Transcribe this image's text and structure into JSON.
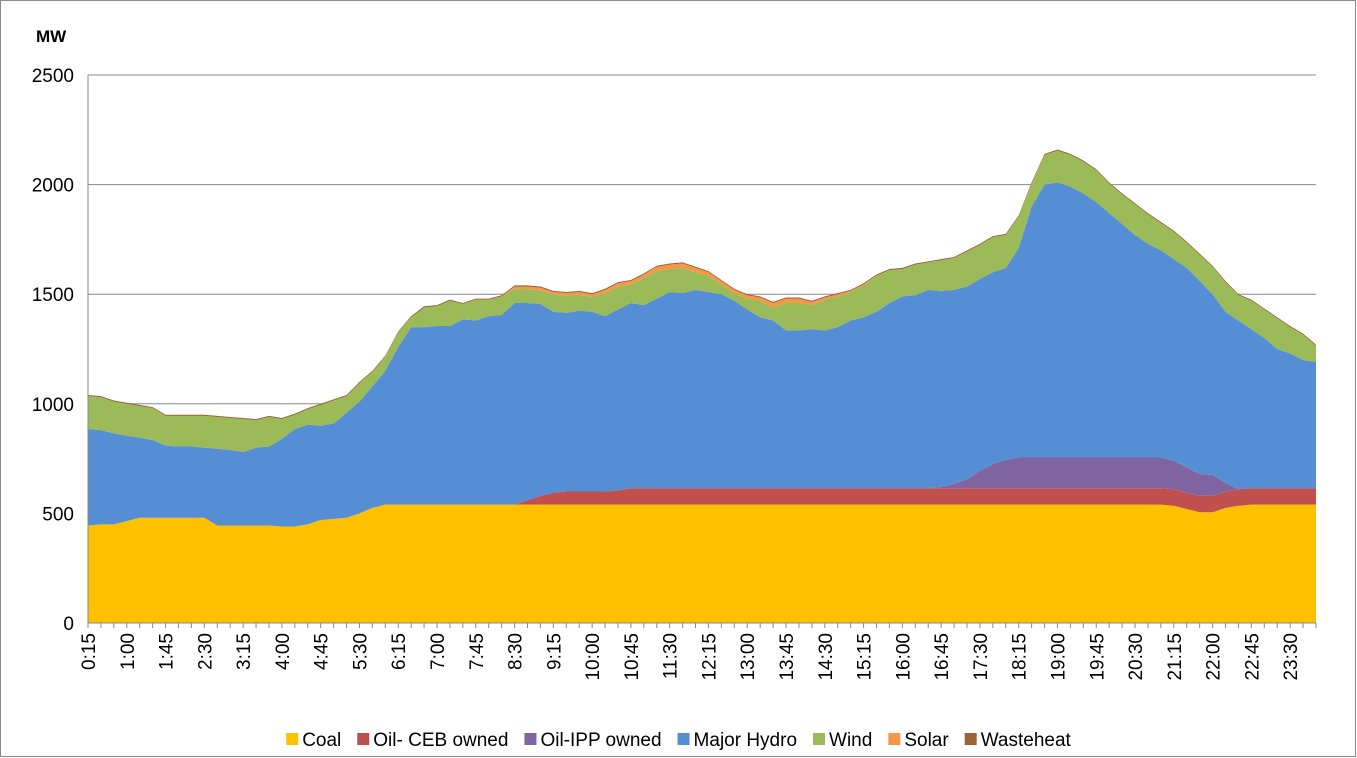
{
  "chart_data": {
    "type": "stacked_area",
    "y_label": "MW",
    "legend": "bottom",
    "grid": true,
    "ylim": [
      0,
      2500
    ],
    "yticks": [
      0,
      500,
      1000,
      1500,
      2000,
      2500
    ],
    "categories": [
      "0:15",
      null,
      null,
      "1:00",
      null,
      null,
      "1:45",
      null,
      null,
      "2:30",
      null,
      null,
      "3:15",
      null,
      null,
      "4:00",
      null,
      null,
      "4:45",
      null,
      null,
      "5:30",
      null,
      null,
      "6:15",
      null,
      null,
      "7:00",
      null,
      null,
      "7:45",
      null,
      null,
      "8:30",
      null,
      null,
      "9:15",
      null,
      null,
      "10:00",
      null,
      null,
      "10:45",
      null,
      null,
      "11:30",
      null,
      null,
      "12:15",
      null,
      null,
      "13:00",
      null,
      null,
      "13:45",
      null,
      null,
      "14:30",
      null,
      null,
      "15:15",
      null,
      null,
      "16:00",
      null,
      null,
      "16:45",
      null,
      null,
      "17:30",
      null,
      null,
      "18:15",
      null,
      null,
      "19:00",
      null,
      null,
      "19:45",
      null,
      null,
      "20:30",
      null,
      null,
      "21:15",
      null,
      null,
      "22:00",
      null,
      null,
      "22:45",
      null,
      null,
      "23:30",
      null,
      null
    ],
    "series": [
      {
        "name": "Coal",
        "color": "#FFC000",
        "values": [
          445,
          450,
          450,
          465,
          480,
          480,
          480,
          480,
          480,
          480,
          445,
          445,
          445,
          445,
          445,
          440,
          440,
          450,
          470,
          475,
          480,
          500,
          525,
          540,
          540,
          540,
          540,
          540,
          540,
          540,
          540,
          540,
          540,
          540,
          540,
          540,
          540,
          540,
          540,
          540,
          540,
          540,
          540,
          540,
          540,
          540,
          540,
          540,
          540,
          540,
          540,
          540,
          540,
          540,
          540,
          540,
          540,
          540,
          540,
          540,
          540,
          540,
          540,
          540,
          540,
          540,
          540,
          540,
          540,
          540,
          540,
          540,
          540,
          540,
          540,
          540,
          540,
          540,
          540,
          540,
          540,
          540,
          540,
          540,
          535,
          520,
          505,
          505,
          525,
          535,
          540,
          540,
          540,
          540,
          540,
          540
        ]
      },
      {
        "name": "Oil- CEB owned",
        "color": "#C0504D",
        "values": [
          0,
          0,
          0,
          0,
          0,
          0,
          0,
          0,
          0,
          0,
          0,
          0,
          0,
          0,
          0,
          0,
          0,
          0,
          0,
          0,
          0,
          0,
          0,
          0,
          0,
          0,
          0,
          0,
          0,
          0,
          0,
          0,
          0,
          0,
          20,
          40,
          55,
          60,
          60,
          60,
          60,
          65,
          75,
          75,
          75,
          75,
          75,
          75,
          75,
          75,
          75,
          75,
          75,
          75,
          75,
          75,
          75,
          75,
          75,
          75,
          75,
          75,
          75,
          75,
          75,
          75,
          75,
          75,
          75,
          75,
          75,
          75,
          75,
          75,
          75,
          75,
          75,
          75,
          75,
          75,
          75,
          75,
          75,
          75,
          75,
          75,
          75,
          75,
          75,
          75,
          75,
          75,
          75,
          75,
          75,
          75
        ]
      },
      {
        "name": "Oil-IPP owned",
        "color": "#8064A2",
        "values": [
          0,
          0,
          0,
          0,
          0,
          0,
          0,
          0,
          0,
          0,
          0,
          0,
          0,
          0,
          0,
          0,
          0,
          0,
          0,
          0,
          0,
          0,
          0,
          0,
          0,
          0,
          0,
          0,
          0,
          0,
          0,
          0,
          0,
          0,
          0,
          0,
          0,
          0,
          0,
          0,
          0,
          0,
          0,
          0,
          0,
          0,
          0,
          0,
          0,
          0,
          0,
          0,
          0,
          0,
          0,
          0,
          0,
          0,
          0,
          0,
          0,
          0,
          0,
          0,
          0,
          0,
          5,
          20,
          40,
          80,
          110,
          130,
          140,
          140,
          140,
          140,
          140,
          140,
          140,
          140,
          140,
          140,
          140,
          140,
          130,
          115,
          100,
          95,
          40,
          0,
          0,
          0,
          0,
          0,
          0,
          0
        ]
      },
      {
        "name": "Major Hydro",
        "color": "#558ED5",
        "values": [
          440,
          430,
          415,
          390,
          365,
          355,
          330,
          325,
          325,
          320,
          350,
          345,
          335,
          355,
          360,
          400,
          445,
          455,
          430,
          435,
          480,
          510,
          555,
          610,
          720,
          810,
          810,
          815,
          815,
          845,
          840,
          860,
          865,
          920,
          900,
          875,
          825,
          815,
          825,
          820,
          800,
          825,
          845,
          835,
          865,
          895,
          890,
          905,
          895,
          885,
          855,
          815,
          780,
          765,
          720,
          720,
          725,
          720,
          735,
          765,
          780,
          805,
          845,
          875,
          880,
          905,
          895,
          885,
          880,
          875,
          875,
          875,
          955,
          1145,
          1245,
          1255,
          1235,
          1205,
          1165,
          1115,
          1065,
          1015,
          975,
          945,
          920,
          910,
          880,
          825,
          780,
          770,
          725,
          685,
          635,
          615,
          585,
          575
        ]
      },
      {
        "name": "Wind",
        "color": "#9BBB59",
        "values": [
          150,
          150,
          145,
          145,
          145,
          145,
          135,
          140,
          140,
          145,
          145,
          145,
          150,
          125,
          135,
          90,
          65,
          70,
          95,
          105,
          75,
          85,
          65,
          65,
          65,
          45,
          90,
          90,
          115,
          70,
          95,
          75,
          85,
          65,
          63,
          63,
          78,
          78,
          73,
          68,
          105,
          105,
          85,
          125,
          125,
          105,
          115,
          80,
          75,
          45,
          35,
          50,
          75,
          60,
          125,
          125,
          110,
          140,
          140,
          130,
          145,
          165,
          150,
          125,
          140,
          125,
          140,
          145,
          160,
          155,
          160,
          150,
          145,
          105,
          135,
          145,
          145,
          145,
          145,
          135,
          135,
          140,
          135,
          125,
          125,
          115,
          120,
          125,
          135,
          115,
          130,
          130,
          140,
          120,
          115,
          75
        ]
      },
      {
        "name": "Solar",
        "color": "#F79646",
        "values": [
          0,
          0,
          0,
          0,
          0,
          0,
          0,
          0,
          0,
          0,
          0,
          0,
          0,
          0,
          0,
          0,
          0,
          0,
          0,
          0,
          0,
          0,
          0,
          0,
          0,
          0,
          0,
          0,
          0,
          0,
          0,
          0,
          0,
          10,
          12,
          12,
          12,
          12,
          12,
          12,
          15,
          15,
          15,
          15,
          20,
          20,
          20,
          20,
          15,
          15,
          15,
          15,
          15,
          20,
          20,
          20,
          15,
          10,
          10,
          5,
          5,
          0,
          0,
          0,
          0,
          0,
          0,
          0,
          0,
          0,
          0,
          0,
          0,
          0,
          0,
          0,
          0,
          0,
          0,
          0,
          0,
          0,
          0,
          0,
          0,
          0,
          0,
          0,
          0,
          0,
          0,
          0,
          0,
          0,
          0,
          0
        ]
      },
      {
        "name": "Wasteheat",
        "color": "#9C6234",
        "values": [
          5,
          5,
          5,
          5,
          5,
          5,
          5,
          5,
          5,
          5,
          5,
          5,
          5,
          5,
          5,
          5,
          5,
          5,
          5,
          5,
          5,
          5,
          5,
          5,
          5,
          5,
          5,
          5,
          5,
          5,
          5,
          5,
          5,
          5,
          5,
          5,
          5,
          5,
          5,
          5,
          5,
          5,
          5,
          5,
          5,
          5,
          5,
          5,
          5,
          5,
          5,
          5,
          5,
          5,
          5,
          5,
          5,
          5,
          5,
          5,
          5,
          5,
          5,
          5,
          5,
          5,
          5,
          5,
          5,
          5,
          5,
          5,
          5,
          5,
          5,
          5,
          5,
          5,
          5,
          5,
          5,
          5,
          5,
          5,
          5,
          5,
          5,
          5,
          5,
          5,
          5,
          5,
          5,
          5,
          5,
          5
        ]
      }
    ]
  }
}
